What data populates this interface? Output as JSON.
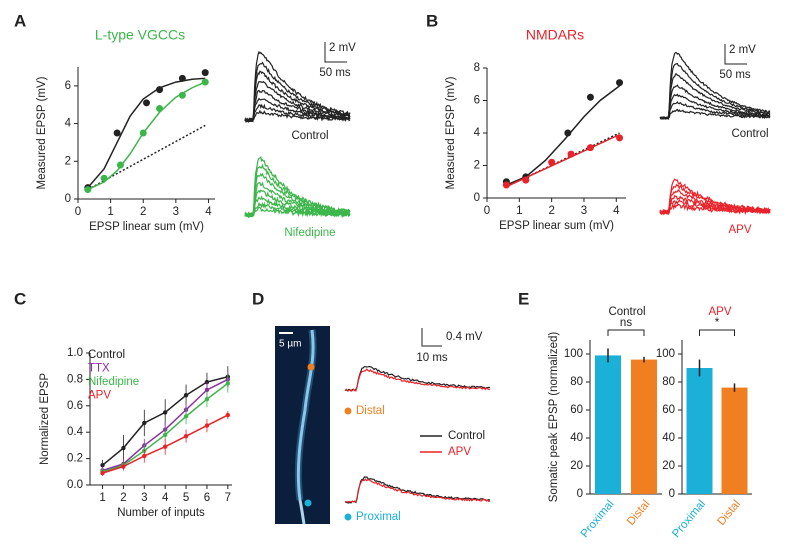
{
  "chart_data": [
    {
      "type": "scatter",
      "panel": "A",
      "title": "L-type VGCCs",
      "title_color": "#3cb54a",
      "x_label": "EPSP linear sum (mV)",
      "y_label": "Measured EPSP (mV)",
      "xlim": [
        0,
        4.2
      ],
      "ylim": [
        0,
        7
      ],
      "xticks": [
        0,
        1,
        2,
        3,
        4
      ],
      "yticks": [
        0,
        2,
        4,
        6
      ],
      "series": [
        {
          "name": "Control",
          "color": "#222222",
          "x": [
            0.3,
            1.2,
            2.1,
            2.5,
            3.2,
            3.9
          ],
          "values": [
            0.6,
            3.5,
            5.1,
            5.8,
            6.4,
            6.7
          ],
          "fit_x": [
            0.3,
            0.8,
            1.2,
            1.6,
            2.0,
            2.5,
            3.0,
            3.5,
            3.9
          ],
          "fit_values": [
            0.6,
            1.6,
            3.0,
            4.4,
            5.3,
            5.9,
            6.2,
            6.35,
            6.4
          ]
        },
        {
          "name": "Nifedipine",
          "color": "#3cb54a",
          "x": [
            0.3,
            0.8,
            1.3,
            2.0,
            2.5,
            3.2,
            3.9
          ],
          "values": [
            0.5,
            1.1,
            1.8,
            3.5,
            4.8,
            5.5,
            6.2
          ],
          "fit_x": [
            0.3,
            0.8,
            1.2,
            1.6,
            2.0,
            2.5,
            3.0,
            3.5,
            3.9
          ],
          "fit_values": [
            0.5,
            0.9,
            1.5,
            2.4,
            3.5,
            4.6,
            5.4,
            5.9,
            6.2
          ]
        }
      ],
      "reference_line": {
        "x": [
          0.3,
          3.9
        ],
        "values": [
          0.5,
          3.9
        ]
      },
      "trace_scale": {
        "amplitude": "2 mV",
        "time": "50 ms"
      }
    },
    {
      "type": "scatter",
      "panel": "B",
      "title": "NMDARs",
      "title_color": "#e8232a",
      "x_label": "EPSP linear sum (mV)",
      "y_label": "Measured EPSP (mV)",
      "xlim": [
        0,
        4.3
      ],
      "ylim": [
        0,
        8
      ],
      "xticks": [
        0,
        1,
        2,
        3,
        4
      ],
      "yticks": [
        0,
        2,
        4,
        6,
        8
      ],
      "series": [
        {
          "name": "Control",
          "color": "#222222",
          "x": [
            0.6,
            1.2,
            2.5,
            3.2,
            4.1
          ],
          "values": [
            1.0,
            1.3,
            4.0,
            6.2,
            7.1
          ],
          "fit_x": [
            0.6,
            1.2,
            1.8,
            2.4,
            3.0,
            3.5,
            4.1
          ],
          "fit_values": [
            0.8,
            1.3,
            2.3,
            3.6,
            5.0,
            6.0,
            6.9
          ]
        },
        {
          "name": "APV",
          "color": "#e8232a",
          "x": [
            0.6,
            1.2,
            2.0,
            2.6,
            3.2,
            4.1
          ],
          "values": [
            0.8,
            1.1,
            2.2,
            2.7,
            3.1,
            3.7
          ],
          "fit_x": [
            0.6,
            4.1
          ],
          "fit_values": [
            0.7,
            3.9
          ]
        }
      ],
      "reference_line": {
        "x": [
          0.6,
          4.1
        ],
        "values": [
          0.7,
          4.0
        ]
      },
      "trace_scale": {
        "amplitude": "2 mV",
        "time": "50 ms"
      }
    },
    {
      "type": "line",
      "panel": "C",
      "x_label": "Number of inputs",
      "y_label": "Normalized EPSP",
      "xlim": [
        0.4,
        7.2
      ],
      "ylim": [
        0,
        1
      ],
      "xticks": [
        1,
        2,
        3,
        4,
        5,
        6,
        7
      ],
      "yticks": [
        {
          "value": 0,
          "label": "0.0"
        },
        0.2,
        0.4,
        0.6,
        0.8,
        {
          "value": 1,
          "label": "1.0"
        }
      ],
      "x": [
        1,
        2,
        3,
        4,
        5,
        6,
        7
      ],
      "series": [
        {
          "name": "Control",
          "color": "#222222",
          "values": [
            0.15,
            0.28,
            0.47,
            0.55,
            0.68,
            0.78,
            0.82
          ],
          "errors": [
            0.04,
            0.1,
            0.1,
            0.1,
            0.08,
            0.07,
            0.08
          ]
        },
        {
          "name": "TTX",
          "color": "#8b2fa0",
          "values": [
            0.11,
            0.16,
            0.3,
            0.42,
            0.57,
            0.72,
            0.8
          ],
          "errors": [
            0.03,
            0.04,
            0.05,
            0.06,
            0.06,
            0.06,
            0.06
          ]
        },
        {
          "name": "Nifedipine",
          "color": "#3cb54a",
          "values": [
            0.1,
            0.15,
            0.26,
            0.38,
            0.52,
            0.65,
            0.77
          ],
          "errors": [
            0.03,
            0.03,
            0.05,
            0.05,
            0.06,
            0.06,
            0.07
          ]
        },
        {
          "name": "APV",
          "color": "#e8232a",
          "values": [
            0.09,
            0.14,
            0.22,
            0.29,
            0.37,
            0.45,
            0.53
          ],
          "errors": [
            0.02,
            0.03,
            0.05,
            0.06,
            0.05,
            0.05,
            0.03
          ]
        }
      ]
    },
    {
      "type": "bar",
      "panel": "E",
      "title": "Control",
      "title_color": "#222222",
      "y_label": "Somatic peak EPSP (normalized)",
      "ylim": [
        0,
        110
      ],
      "yticks": [
        0,
        20,
        40,
        60,
        80,
        100
      ],
      "categories": [
        "Proximal",
        "Distal"
      ],
      "colors": [
        "#1ab0d8",
        "#f07f22"
      ],
      "values": [
        99,
        96
      ],
      "errors": [
        5,
        2
      ],
      "significance": "ns"
    },
    {
      "type": "bar",
      "title": "APV",
      "title_color": "#e8232a",
      "ylim": [
        0,
        110
      ],
      "yticks": [
        0,
        20,
        40,
        60,
        80,
        100
      ],
      "categories": [
        "Proximal",
        "Distal"
      ],
      "colors": [
        "#1ab0d8",
        "#f07f22"
      ],
      "values": [
        90,
        76
      ],
      "errors": [
        6,
        3
      ],
      "significance": "*"
    }
  ],
  "panel_d": {
    "panel": "D",
    "scale_bar": "5 µm",
    "sites": [
      "Distal",
      "Proximal"
    ],
    "legend": [
      "Control",
      "APV"
    ],
    "trace_scale": {
      "amplitude": "0.4 mV",
      "time": "10 ms"
    }
  }
}
